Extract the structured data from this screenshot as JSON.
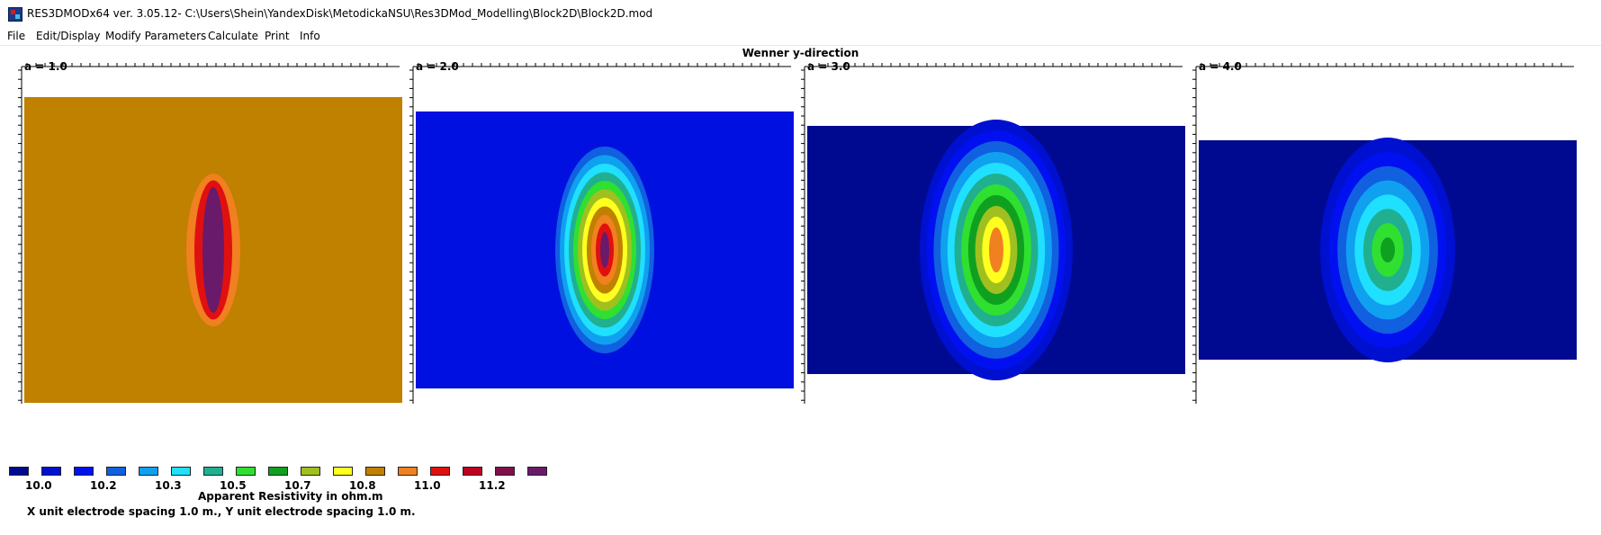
{
  "window": {
    "title": "RES3DMODx64 ver. 3.05.12- C:\\Users\\Shein\\YandexDisk\\MetodickaNSU\\Res3DMod_Modelling\\Block2D\\Block2D.mod"
  },
  "menu": [
    "File",
    "Edit/Display",
    "Modify Parameters",
    "Calculate",
    "Print",
    "Info"
  ],
  "plot": {
    "title": "Wenner y-direction",
    "panels": [
      {
        "label": "a = 1.0",
        "background": "#c08000",
        "rings": [
          "#f08020",
          "#e01010",
          "#6a1a6a"
        ]
      },
      {
        "label": "a = 2.0",
        "background": "#0010e0",
        "rings": [
          "#1060e0",
          "#10a0f0",
          "#20e0ff",
          "#20b090",
          "#30e030",
          "#a0c020",
          "#ffff20",
          "#c08000",
          "#f08020",
          "#e01010",
          "#6a1a6a"
        ]
      },
      {
        "label": "a = 3.0",
        "background": "#000a90",
        "rings": [
          "#0010d0",
          "#0010f0",
          "#1060e0",
          "#10a0f0",
          "#20e0ff",
          "#20b090",
          "#30e030",
          "#10a020",
          "#a0c020",
          "#ffff20",
          "#f08020"
        ]
      },
      {
        "label": "a = 4.0",
        "background": "#000a90",
        "rings": [
          "#0010d0",
          "#0010f0",
          "#1060e0",
          "#10a0f0",
          "#20e0ff",
          "#20b090",
          "#30e030",
          "#10a020"
        ]
      }
    ]
  },
  "legend": {
    "colors": [
      "#000a90",
      "#0010d0",
      "#0010f0",
      "#1060e0",
      "#10a0f0",
      "#20e0ff",
      "#20b090",
      "#30e030",
      "#10a020",
      "#a0c020",
      "#ffff20",
      "#c08000",
      "#f08020",
      "#e01010",
      "#c00020",
      "#80104a",
      "#6a1a6a"
    ],
    "values": [
      "10.0",
      "10.2",
      "10.3",
      "10.5",
      "10.7",
      "10.8",
      "11.0",
      "11.2"
    ],
    "caption": "Apparent Resistivity in ohm.m"
  },
  "note": "X unit electrode spacing 1.0 m., Y unit electrode spacing 1.0 m."
}
